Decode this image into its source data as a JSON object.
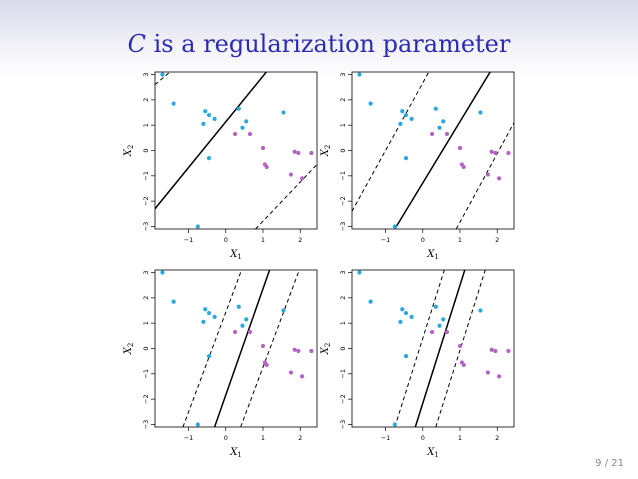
{
  "slide": {
    "title_var": "C",
    "title_rest": " is a regularization parameter",
    "page_number": "9 / 21"
  },
  "colors": {
    "title": "#2b2bb0",
    "class_blue": "#29a8e0",
    "class_purple": "#b463c4",
    "line": "#000000"
  },
  "chart_data": [
    {
      "type": "scatter",
      "panel": "top-left",
      "xlabel_main": "X",
      "xlabel_sub": "1",
      "ylabel_main": "X",
      "ylabel_sub": "2",
      "xlim": [
        -1.9,
        2.45
      ],
      "ylim": [
        -3.1,
        3.1
      ],
      "xticks": [
        -1,
        0,
        1,
        2
      ],
      "yticks": [
        -3,
        -2,
        -1,
        0,
        1,
        2,
        3
      ],
      "hyperplane": {
        "x1": [
          -1.9,
          1.2
        ],
        "x2": [
          -2.3,
          3.3
        ]
      },
      "margins": [
        {
          "x1": [
            -1.9,
            -1.5
          ],
          "x2": [
            2.6,
            3.1
          ]
        },
        {
          "x1": [
            0.8,
            2.45
          ],
          "x2": [
            -3.1,
            -0.55
          ]
        }
      ]
    },
    {
      "type": "scatter",
      "panel": "top-right",
      "xlabel_main": "X",
      "xlabel_sub": "1",
      "ylabel_main": "X",
      "ylabel_sub": "2",
      "xlim": [
        -1.9,
        2.45
      ],
      "ylim": [
        -3.1,
        3.1
      ],
      "xticks": [
        -1,
        0,
        1,
        2
      ],
      "yticks": [
        -3,
        -2,
        -1,
        0,
        1,
        2,
        3
      ],
      "hyperplane": {
        "x1": [
          -0.75,
          1.85
        ],
        "x2": [
          -3.1,
          3.2
        ]
      },
      "margins": [
        {
          "x1": [
            -1.9,
            0.2
          ],
          "x2": [
            -2.4,
            3.2
          ]
        },
        {
          "x1": [
            0.9,
            2.45
          ],
          "x2": [
            -3.1,
            1.1
          ]
        }
      ]
    },
    {
      "type": "scatter",
      "panel": "bottom-left",
      "xlabel_main": "X",
      "xlabel_sub": "1",
      "ylabel_main": "X",
      "ylabel_sub": "2",
      "xlim": [
        -1.9,
        2.45
      ],
      "ylim": [
        -3.1,
        3.1
      ],
      "xticks": [
        -1,
        0,
        1,
        2
      ],
      "yticks": [
        -3,
        -2,
        -1,
        0,
        1,
        2,
        3
      ],
      "hyperplane": {
        "x1": [
          -0.3,
          1.2
        ],
        "x2": [
          -3.1,
          3.2
        ]
      },
      "margins": [
        {
          "x1": [
            -1.15,
            0.45
          ],
          "x2": [
            -3.1,
            3.2
          ]
        },
        {
          "x1": [
            0.4,
            2.0
          ],
          "x2": [
            -3.1,
            3.2
          ]
        }
      ]
    },
    {
      "type": "scatter",
      "panel": "bottom-right",
      "xlabel_main": "X",
      "xlabel_sub": "1",
      "ylabel_main": "X",
      "ylabel_sub": "2",
      "xlim": [
        -1.9,
        2.45
      ],
      "ylim": [
        -3.1,
        3.1
      ],
      "xticks": [
        -1,
        0,
        1,
        2
      ],
      "yticks": [
        -3,
        -2,
        -1,
        0,
        1,
        2,
        3
      ],
      "hyperplane": {
        "x1": [
          -0.2,
          1.15
        ],
        "x2": [
          -3.1,
          3.2
        ]
      },
      "margins": [
        {
          "x1": [
            -0.75,
            0.6
          ],
          "x2": [
            -3.1,
            3.2
          ]
        },
        {
          "x1": [
            0.35,
            1.7
          ],
          "x2": [
            -3.1,
            3.2
          ]
        }
      ]
    }
  ],
  "points": {
    "blue": [
      [
        -1.7,
        3.0
      ],
      [
        -1.4,
        1.85
      ],
      [
        -0.55,
        1.55
      ],
      [
        -0.45,
        1.4
      ],
      [
        -0.6,
        1.05
      ],
      [
        -0.3,
        1.25
      ],
      [
        0.35,
        1.65
      ],
      [
        0.45,
        0.9
      ],
      [
        0.55,
        1.15
      ],
      [
        1.55,
        1.5
      ],
      [
        -0.45,
        -0.3
      ],
      [
        -0.75,
        -3.0
      ]
    ],
    "purple": [
      [
        0.25,
        0.65
      ],
      [
        0.65,
        0.65
      ],
      [
        1.0,
        0.1
      ],
      [
        1.05,
        -0.55
      ],
      [
        1.1,
        -0.65
      ],
      [
        1.85,
        -0.05
      ],
      [
        1.95,
        -0.1
      ],
      [
        2.3,
        -0.1
      ],
      [
        1.75,
        -0.95
      ],
      [
        2.05,
        -1.1
      ]
    ]
  }
}
